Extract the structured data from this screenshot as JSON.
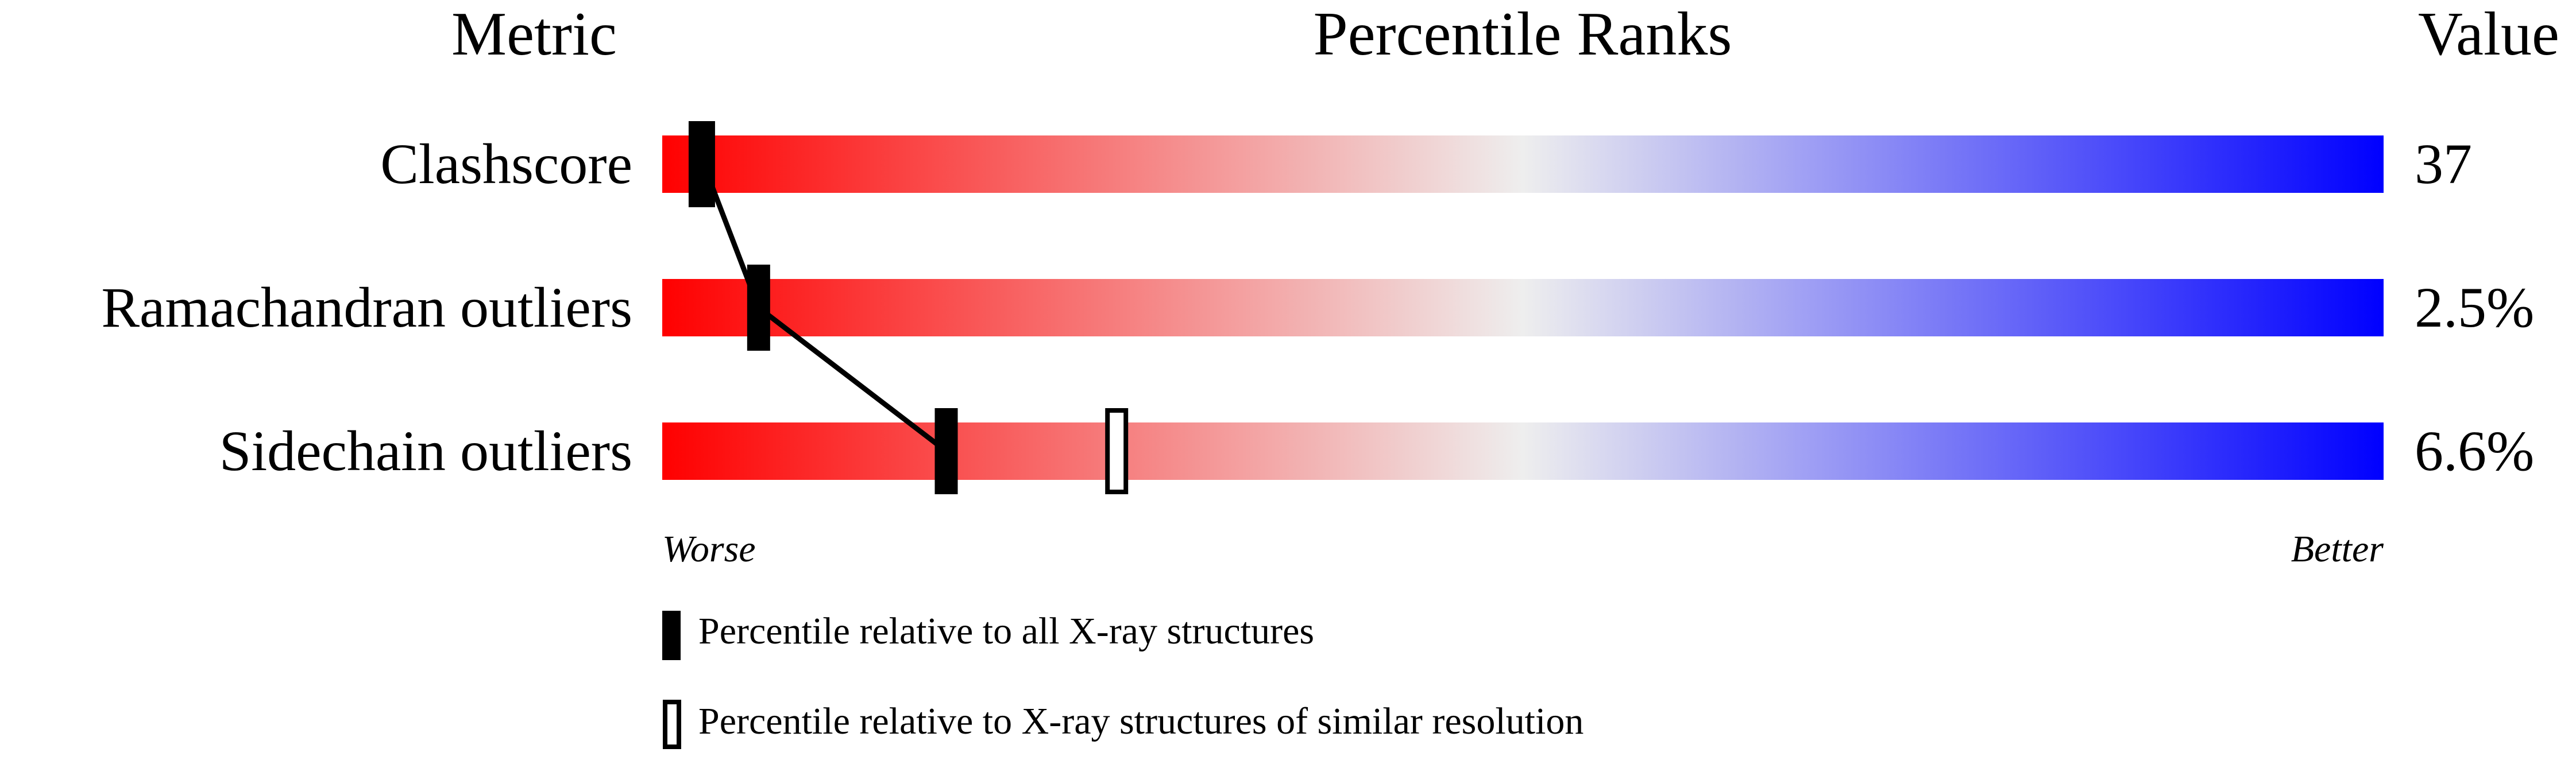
{
  "chart_data": {
    "type": "bar",
    "headers": {
      "metric": "Metric",
      "ranks": "Percentile Ranks",
      "value": "Value"
    },
    "metrics": [
      {
        "label": "Clashscore",
        "value": "37",
        "percentile_all": 2.4,
        "percentile_similar": 2.2
      },
      {
        "label": "Ramachandran outliers",
        "value": "2.5%",
        "percentile_all": 5.6,
        "percentile_similar": null
      },
      {
        "label": "Sidechain outliers",
        "value": "6.6%",
        "percentile_all": 16.5,
        "percentile_similar": 26.4
      }
    ],
    "xlim": [
      0,
      100
    ],
    "axis_labels": {
      "left": "Worse",
      "right": "Better"
    },
    "gradient_colors": [
      "#ff0000",
      "#eeeeee",
      "#0000ff"
    ],
    "legend": {
      "all": "Percentile relative to all X-ray structures",
      "similar": "Percentile relative to X-ray structures of similar resolution"
    }
  }
}
